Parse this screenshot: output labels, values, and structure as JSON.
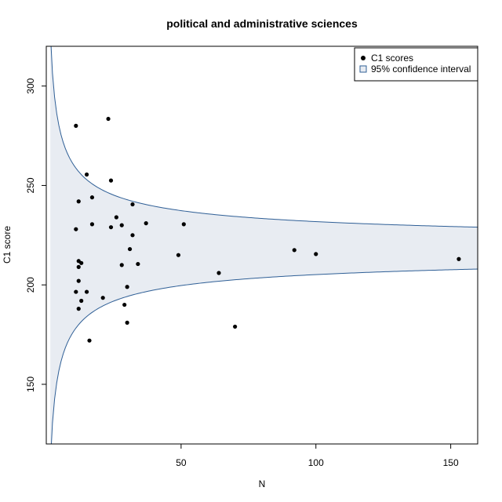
{
  "chart_data": {
    "type": "scatter",
    "title": "political and administrative sciences",
    "xlabel": "N",
    "ylabel": "C1 score",
    "xlim": [
      0,
      160
    ],
    "ylim": [
      120,
      320
    ],
    "xticks": [
      50,
      100,
      150
    ],
    "yticks": [
      150,
      200,
      250,
      300
    ],
    "grid": false,
    "legend_position": "top-right",
    "legend": {
      "points_label": "C1 scores",
      "band_label": "95% confidence interval"
    },
    "band": {
      "center": 218.5,
      "halfwidth_coefficient": 68,
      "color": "#e8ecf2",
      "line_color": "#2f5f96"
    },
    "series": [
      {
        "name": "C1 scores",
        "x": [
          11,
          11,
          11,
          12,
          12,
          12,
          12,
          12,
          13,
          13,
          15,
          15,
          16,
          17,
          17,
          21,
          23,
          24,
          24,
          26,
          28,
          28,
          29,
          30,
          30,
          31,
          32,
          32,
          34,
          37,
          49,
          51,
          64,
          70,
          92,
          100,
          153
        ],
        "y": [
          228,
          196.5,
          280,
          209,
          212,
          242,
          202,
          188,
          211,
          192,
          255.5,
          196.5,
          172,
          244,
          230.5,
          193.5,
          283.5,
          229,
          252.5,
          234,
          210,
          230,
          190,
          181,
          199,
          218,
          225,
          240.5,
          210.5,
          231,
          215,
          230.5,
          206,
          179,
          217.5,
          215.5,
          213
        ]
      }
    ]
  }
}
